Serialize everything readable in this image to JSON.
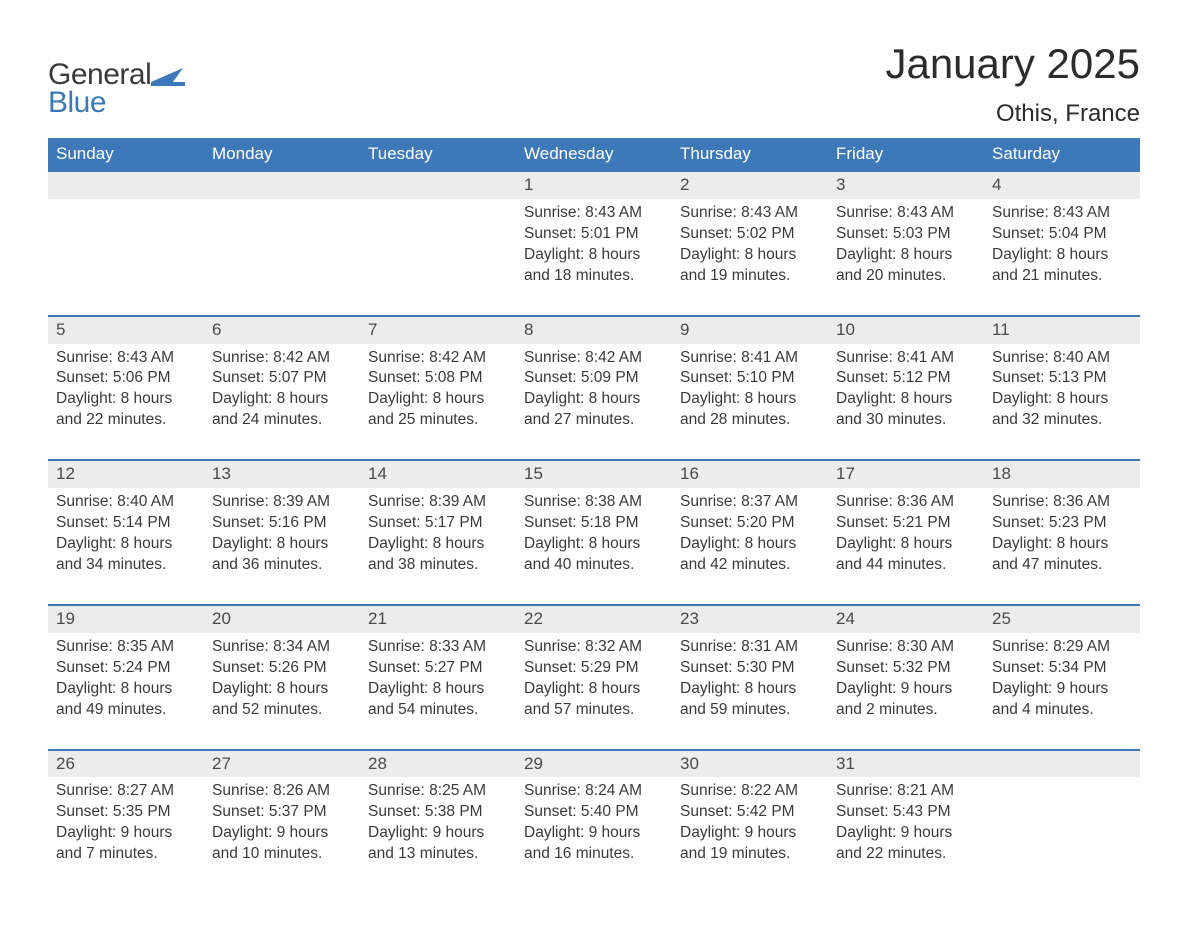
{
  "logo": {
    "text1": "General",
    "text2": "Blue"
  },
  "title": "January 2025",
  "location": "Othis, France",
  "weekdays": [
    "Sunday",
    "Monday",
    "Tuesday",
    "Wednesday",
    "Thursday",
    "Friday",
    "Saturday"
  ],
  "colors": {
    "header_bg": "#3d79b8",
    "header_text": "#ffffff",
    "daynum_bg": "#ececec",
    "row_border": "#3d79b8",
    "body_text": "#3a3a3a",
    "logo_blue": "#3d79b8"
  },
  "weeks": [
    [
      {
        "empty": true
      },
      {
        "empty": true
      },
      {
        "empty": true
      },
      {
        "day": "1",
        "sunrise": "Sunrise: 8:43 AM",
        "sunset": "Sunset: 5:01 PM",
        "d1": "Daylight: 8 hours",
        "d2": "and 18 minutes."
      },
      {
        "day": "2",
        "sunrise": "Sunrise: 8:43 AM",
        "sunset": "Sunset: 5:02 PM",
        "d1": "Daylight: 8 hours",
        "d2": "and 19 minutes."
      },
      {
        "day": "3",
        "sunrise": "Sunrise: 8:43 AM",
        "sunset": "Sunset: 5:03 PM",
        "d1": "Daylight: 8 hours",
        "d2": "and 20 minutes."
      },
      {
        "day": "4",
        "sunrise": "Sunrise: 8:43 AM",
        "sunset": "Sunset: 5:04 PM",
        "d1": "Daylight: 8 hours",
        "d2": "and 21 minutes."
      }
    ],
    [
      {
        "day": "5",
        "sunrise": "Sunrise: 8:43 AM",
        "sunset": "Sunset: 5:06 PM",
        "d1": "Daylight: 8 hours",
        "d2": "and 22 minutes."
      },
      {
        "day": "6",
        "sunrise": "Sunrise: 8:42 AM",
        "sunset": "Sunset: 5:07 PM",
        "d1": "Daylight: 8 hours",
        "d2": "and 24 minutes."
      },
      {
        "day": "7",
        "sunrise": "Sunrise: 8:42 AM",
        "sunset": "Sunset: 5:08 PM",
        "d1": "Daylight: 8 hours",
        "d2": "and 25 minutes."
      },
      {
        "day": "8",
        "sunrise": "Sunrise: 8:42 AM",
        "sunset": "Sunset: 5:09 PM",
        "d1": "Daylight: 8 hours",
        "d2": "and 27 minutes."
      },
      {
        "day": "9",
        "sunrise": "Sunrise: 8:41 AM",
        "sunset": "Sunset: 5:10 PM",
        "d1": "Daylight: 8 hours",
        "d2": "and 28 minutes."
      },
      {
        "day": "10",
        "sunrise": "Sunrise: 8:41 AM",
        "sunset": "Sunset: 5:12 PM",
        "d1": "Daylight: 8 hours",
        "d2": "and 30 minutes."
      },
      {
        "day": "11",
        "sunrise": "Sunrise: 8:40 AM",
        "sunset": "Sunset: 5:13 PM",
        "d1": "Daylight: 8 hours",
        "d2": "and 32 minutes."
      }
    ],
    [
      {
        "day": "12",
        "sunrise": "Sunrise: 8:40 AM",
        "sunset": "Sunset: 5:14 PM",
        "d1": "Daylight: 8 hours",
        "d2": "and 34 minutes."
      },
      {
        "day": "13",
        "sunrise": "Sunrise: 8:39 AM",
        "sunset": "Sunset: 5:16 PM",
        "d1": "Daylight: 8 hours",
        "d2": "and 36 minutes."
      },
      {
        "day": "14",
        "sunrise": "Sunrise: 8:39 AM",
        "sunset": "Sunset: 5:17 PM",
        "d1": "Daylight: 8 hours",
        "d2": "and 38 minutes."
      },
      {
        "day": "15",
        "sunrise": "Sunrise: 8:38 AM",
        "sunset": "Sunset: 5:18 PM",
        "d1": "Daylight: 8 hours",
        "d2": "and 40 minutes."
      },
      {
        "day": "16",
        "sunrise": "Sunrise: 8:37 AM",
        "sunset": "Sunset: 5:20 PM",
        "d1": "Daylight: 8 hours",
        "d2": "and 42 minutes."
      },
      {
        "day": "17",
        "sunrise": "Sunrise: 8:36 AM",
        "sunset": "Sunset: 5:21 PM",
        "d1": "Daylight: 8 hours",
        "d2": "and 44 minutes."
      },
      {
        "day": "18",
        "sunrise": "Sunrise: 8:36 AM",
        "sunset": "Sunset: 5:23 PM",
        "d1": "Daylight: 8 hours",
        "d2": "and 47 minutes."
      }
    ],
    [
      {
        "day": "19",
        "sunrise": "Sunrise: 8:35 AM",
        "sunset": "Sunset: 5:24 PM",
        "d1": "Daylight: 8 hours",
        "d2": "and 49 minutes."
      },
      {
        "day": "20",
        "sunrise": "Sunrise: 8:34 AM",
        "sunset": "Sunset: 5:26 PM",
        "d1": "Daylight: 8 hours",
        "d2": "and 52 minutes."
      },
      {
        "day": "21",
        "sunrise": "Sunrise: 8:33 AM",
        "sunset": "Sunset: 5:27 PM",
        "d1": "Daylight: 8 hours",
        "d2": "and 54 minutes."
      },
      {
        "day": "22",
        "sunrise": "Sunrise: 8:32 AM",
        "sunset": "Sunset: 5:29 PM",
        "d1": "Daylight: 8 hours",
        "d2": "and 57 minutes."
      },
      {
        "day": "23",
        "sunrise": "Sunrise: 8:31 AM",
        "sunset": "Sunset: 5:30 PM",
        "d1": "Daylight: 8 hours",
        "d2": "and 59 minutes."
      },
      {
        "day": "24",
        "sunrise": "Sunrise: 8:30 AM",
        "sunset": "Sunset: 5:32 PM",
        "d1": "Daylight: 9 hours",
        "d2": "and 2 minutes."
      },
      {
        "day": "25",
        "sunrise": "Sunrise: 8:29 AM",
        "sunset": "Sunset: 5:34 PM",
        "d1": "Daylight: 9 hours",
        "d2": "and 4 minutes."
      }
    ],
    [
      {
        "day": "26",
        "sunrise": "Sunrise: 8:27 AM",
        "sunset": "Sunset: 5:35 PM",
        "d1": "Daylight: 9 hours",
        "d2": "and 7 minutes."
      },
      {
        "day": "27",
        "sunrise": "Sunrise: 8:26 AM",
        "sunset": "Sunset: 5:37 PM",
        "d1": "Daylight: 9 hours",
        "d2": "and 10 minutes."
      },
      {
        "day": "28",
        "sunrise": "Sunrise: 8:25 AM",
        "sunset": "Sunset: 5:38 PM",
        "d1": "Daylight: 9 hours",
        "d2": "and 13 minutes."
      },
      {
        "day": "29",
        "sunrise": "Sunrise: 8:24 AM",
        "sunset": "Sunset: 5:40 PM",
        "d1": "Daylight: 9 hours",
        "d2": "and 16 minutes."
      },
      {
        "day": "30",
        "sunrise": "Sunrise: 8:22 AM",
        "sunset": "Sunset: 5:42 PM",
        "d1": "Daylight: 9 hours",
        "d2": "and 19 minutes."
      },
      {
        "day": "31",
        "sunrise": "Sunrise: 8:21 AM",
        "sunset": "Sunset: 5:43 PM",
        "d1": "Daylight: 9 hours",
        "d2": "and 22 minutes."
      },
      {
        "empty": true
      }
    ]
  ]
}
